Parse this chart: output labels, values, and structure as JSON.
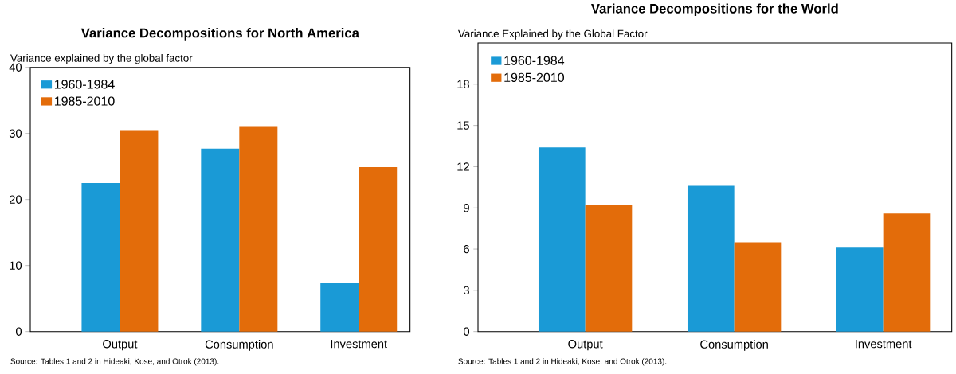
{
  "chart_data": [
    {
      "type": "bar",
      "title": "Variance Decompositions for North America",
      "ylabel": "Variance explained by the global factor",
      "categories": [
        "Output",
        "Consumption",
        "Investment"
      ],
      "series": [
        {
          "name": "1960-1984",
          "color": "#1a9ad6",
          "values": [
            22.5,
            27.7,
            7.3
          ]
        },
        {
          "name": "1985-2010",
          "color": "#e36c0a",
          "values": [
            30.5,
            31.1,
            24.9
          ]
        }
      ],
      "ylim": [
        0,
        40
      ],
      "yticks": [
        0,
        10,
        20,
        30,
        40
      ],
      "legend": "top left",
      "annotations": [
        "Source: Tables 1 and 2 in Hideaki, Kose, and Otrok (2013)."
      ]
    },
    {
      "type": "bar",
      "title": "Variance Decompositions for the World",
      "ylabel": "Variance Explained by the Global Factor",
      "categories": [
        "Output",
        "Consumption",
        "Investment"
      ],
      "series": [
        {
          "name": "1960-1984",
          "color": "#1a9ad6",
          "values": [
            13.4,
            10.6,
            6.1
          ]
        },
        {
          "name": "1985-2010",
          "color": "#e36c0a",
          "values": [
            9.2,
            6.5,
            8.6
          ]
        }
      ],
      "ylim": [
        0,
        21
      ],
      "yticks": [
        0,
        3,
        6,
        9,
        12,
        15,
        18
      ],
      "legend": "top left",
      "annotations": [
        "Source: Tables 1 and 2 in Hideaki, Kose, and Otrok (2013)."
      ]
    }
  ]
}
